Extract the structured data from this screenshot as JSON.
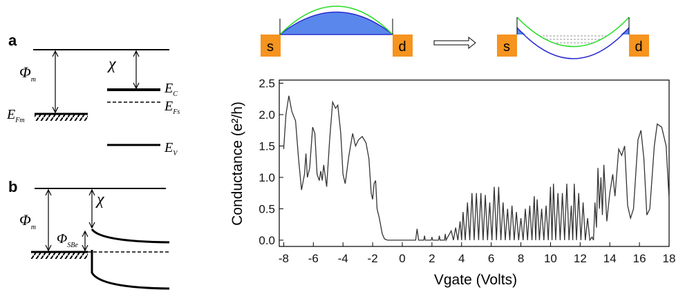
{
  "panel_a": {
    "label": "a",
    "phi": {
      "symbol": "Φ",
      "sub": "m"
    },
    "chi": "χ",
    "ec": {
      "symbol": "E",
      "sub": "C"
    },
    "efs": {
      "symbol": "E",
      "sub": "Fs"
    },
    "efm": {
      "symbol": "E",
      "sub": "Fm"
    },
    "ev": {
      "symbol": "E",
      "sub": "V"
    }
  },
  "panel_b": {
    "label": "b",
    "phi": {
      "symbol": "Φ",
      "sub": "m"
    },
    "phi_sbe": {
      "symbol": "Φ",
      "sub": "SBe"
    },
    "chi": "χ"
  },
  "schematic": {
    "left": {
      "source": "s",
      "drain": "d"
    },
    "right": {
      "source": "s",
      "drain": "d"
    }
  },
  "chart_data": {
    "type": "line",
    "x_label": "Vgate (Volts)",
    "y_label": "Conductance (e²/h)",
    "color": "#333333",
    "xlim": [
      -8.3,
      18
    ],
    "ylim": [
      -0.1,
      2.55
    ],
    "xticks": [
      -8,
      -6,
      -4,
      -2,
      0,
      2,
      4,
      6,
      8,
      10,
      12,
      14,
      16,
      18
    ],
    "yticks": [
      {
        "value": 0,
        "label": "0.0"
      },
      0.5,
      {
        "value": 1,
        "label": "1.0"
      },
      1.5,
      {
        "value": 2,
        "label": "2.0"
      },
      2.5
    ],
    "x": [
      -8,
      -7.85,
      -7.65,
      -7.45,
      -7.2,
      -7.0,
      -6.8,
      -6.6,
      -6.5,
      -6.4,
      -6.25,
      -6.05,
      -5.9,
      -5.75,
      -5.6,
      -5.5,
      -5.4,
      -5.3,
      -5.1,
      -4.9,
      -4.7,
      -4.5,
      -4.35,
      -4.15,
      -4.0,
      -3.85,
      -3.6,
      -3.35,
      -3.15,
      -2.95,
      -2.7,
      -2.45,
      -2.25,
      -2.1,
      -2.0,
      -1.9,
      -1.8,
      -1.7,
      -1.55,
      -1.35,
      -1.2,
      -1.0,
      0.9,
      1.0,
      1.1,
      1.45,
      1.5,
      1.55,
      1.95,
      2.0,
      2.05,
      2.45,
      2.5,
      2.55,
      2.85,
      2.9,
      2.95,
      3.3,
      3.45,
      3.6,
      3.75,
      3.9,
      4.0,
      4.1,
      4.25,
      4.4,
      4.55,
      4.7,
      4.85,
      5.0,
      5.15,
      5.3,
      5.45,
      5.6,
      5.75,
      5.9,
      6.05,
      6.2,
      6.35,
      6.5,
      6.65,
      6.8,
      6.95,
      7.1,
      7.25,
      7.4,
      7.55,
      7.7,
      7.85,
      8.0,
      8.15,
      8.3,
      8.45,
      8.6,
      8.75,
      8.9,
      9.0,
      9.1,
      9.25,
      9.4,
      9.55,
      9.7,
      9.85,
      10.0,
      10.1,
      10.2,
      10.35,
      10.5,
      10.65,
      10.8,
      10.95,
      11.1,
      11.25,
      11.4,
      11.5,
      11.6,
      11.75,
      11.9,
      12.05,
      12.2,
      12.35,
      12.5,
      12.65,
      12.8,
      12.9,
      13.0,
      13.1,
      13.2,
      13.3,
      13.4,
      13.5,
      13.6,
      13.8,
      14.0,
      14.2,
      14.35,
      14.6,
      14.8,
      15.0,
      15.2,
      15.4,
      15.6,
      15.9,
      16.1,
      16.3,
      16.5,
      16.7,
      17.0,
      17.2,
      17.5,
      17.8,
      18.0
    ],
    "values": [
      1.45,
      2.0,
      2.3,
      2.05,
      1.9,
      1.3,
      0.8,
      1.05,
      1.38,
      1.0,
      1.15,
      1.8,
      1.7,
      1.05,
      0.95,
      1.1,
      0.95,
      1.2,
      0.85,
      1.6,
      2.2,
      2.1,
      2.15,
      1.7,
      1.05,
      0.9,
      1.35,
      1.7,
      1.5,
      1.6,
      1.65,
      1.55,
      1.3,
      0.75,
      0.65,
      0.9,
      0.95,
      0.5,
      0.35,
      0.1,
      0.02,
      0,
      0,
      0.18,
      0,
      0,
      0.07,
      0,
      0,
      0.05,
      0,
      0,
      0.07,
      0,
      0,
      0.1,
      0,
      0.15,
      0,
      0.2,
      0,
      0.3,
      0,
      0.45,
      0,
      0.6,
      0,
      0.75,
      0,
      0.75,
      0,
      0.75,
      0,
      0.72,
      0,
      0.6,
      0,
      0.85,
      0,
      0.85,
      0,
      0.6,
      0,
      0.5,
      0,
      0.55,
      0,
      0.45,
      0,
      0.35,
      0,
      0.5,
      0,
      0.55,
      0,
      0.7,
      0,
      0.65,
      0,
      0.5,
      0,
      0.55,
      0,
      0.85,
      0,
      0.9,
      0,
      0.75,
      0,
      0.75,
      0,
      0.9,
      0,
      0.55,
      0,
      0.9,
      0,
      0.75,
      0,
      0.6,
      0,
      0.35,
      0,
      0.05,
      0,
      0.6,
      0.2,
      1.15,
      0.5,
      1.0,
      0.4,
      1.2,
      0.3,
      0.75,
      1.05,
      0.7,
      1.45,
      1.35,
      1.5,
      0.55,
      0.35,
      0.5,
      1.6,
      1.75,
      1.3,
      0.4,
      0.5,
      1.5,
      1.85,
      1.8,
      1.5,
      0.65
    ]
  }
}
